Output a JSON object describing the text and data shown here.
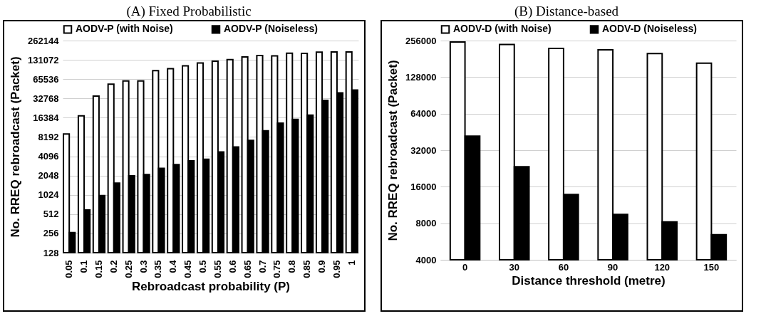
{
  "chart_data": [
    {
      "type": "bar",
      "title": "(A) Fixed Probabilistic",
      "xlabel": "Rebroadcast probability (P)",
      "ylabel": "No. RREQ rebroadcast (Packet)",
      "categories": [
        "0.05",
        "0.1",
        "0.15",
        "0.2",
        "0.25",
        "0.3",
        "0.35",
        "0.4",
        "0.45",
        "0.5",
        "0.55",
        "0.6",
        "0.65",
        "0.7",
        "0.75",
        "0.8",
        "0.85",
        "0.9",
        "0.95",
        "1"
      ],
      "series": [
        {
          "name": "AODV-P (with Noise)",
          "color": "#ffffff",
          "values": [
            9150,
            17550,
            35700,
            54700,
            61200,
            61200,
            89000,
            95300,
            105700,
            117200,
            124500,
            132000,
            145300,
            152900,
            151000,
            166900,
            165000,
            172600,
            174000,
            174000
          ]
        },
        {
          "name": "AODV-P (Noiseless)",
          "color": "#000000",
          "values": [
            263,
            595,
            1000,
            1560,
            2030,
            2120,
            2650,
            3040,
            3480,
            3690,
            4780,
            5730,
            7260,
            10250,
            13480,
            15400,
            18000,
            30600,
            39900,
            44300
          ]
        }
      ],
      "ylim": [
        128,
        262144
      ],
      "yticks": [
        128,
        256,
        512,
        1024,
        2048,
        4096,
        8192,
        16384,
        32768,
        65536,
        131072,
        262144
      ],
      "log": "y",
      "grid": "y",
      "legend": "top"
    },
    {
      "type": "bar",
      "title": "(B) Distance-based",
      "xlabel": "Distance threshold (metre)",
      "ylabel": "No. RREQ rebroadcast (Packet)",
      "categories": [
        "0",
        "30",
        "60",
        "90",
        "120",
        "150"
      ],
      "series": [
        {
          "name": "AODV-D (with Noise)",
          "color": "#ffffff",
          "values": [
            249000,
            237800,
            220700,
            214800,
            200400,
            166700
          ]
        },
        {
          "name": "AODV-D (Noiseless)",
          "color": "#000000",
          "values": [
            41800,
            23400,
            13800,
            9450,
            8220,
            6440
          ]
        }
      ],
      "ylim": [
        4000,
        256000
      ],
      "yticks": [
        4000,
        8000,
        16000,
        32000,
        64000,
        128000,
        256000
      ],
      "log": "y",
      "grid": "y",
      "legend": "top"
    }
  ]
}
